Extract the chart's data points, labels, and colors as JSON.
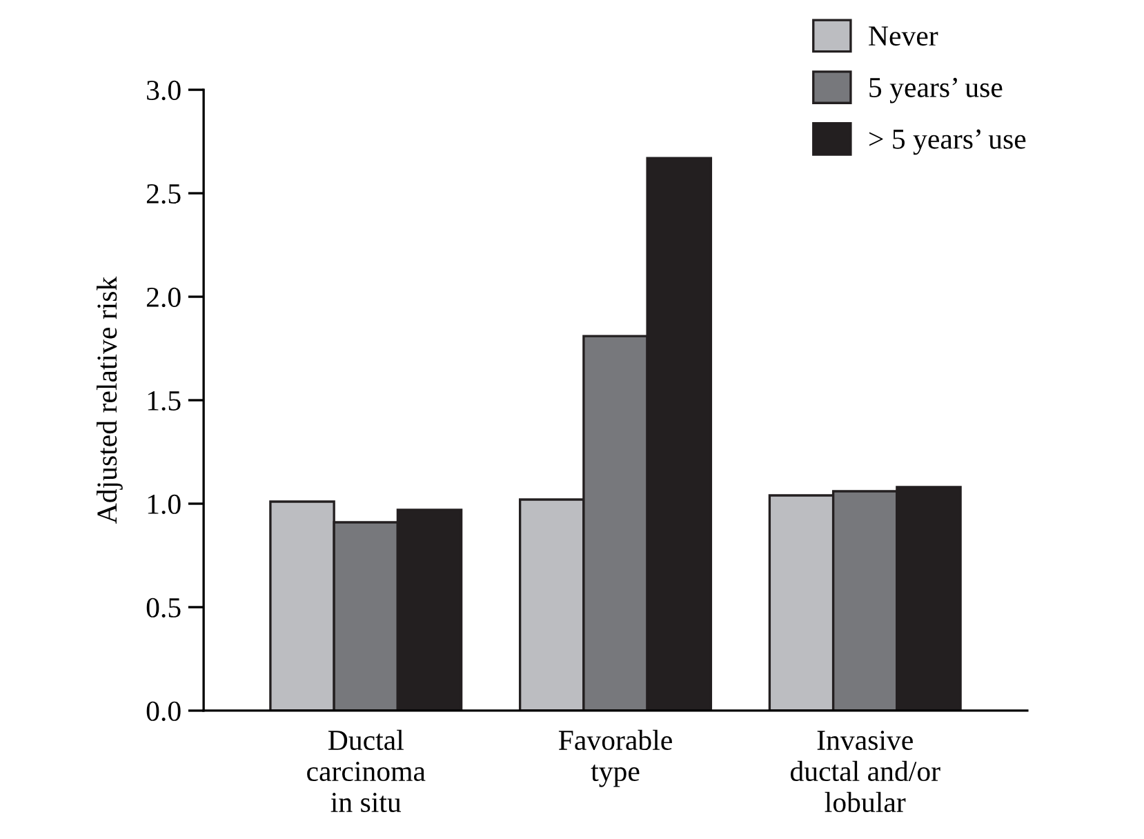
{
  "chart_data": {
    "type": "bar",
    "ylabel": "Adjusted relative risk",
    "categories": [
      "Ductal\ncarcinoma\nin situ",
      "Favorable\ntype",
      "Invasive\nductal and/or\nlobular"
    ],
    "series": [
      {
        "name": "Never",
        "color": "#bcbdc1",
        "values": [
          1.01,
          1.02,
          1.04
        ]
      },
      {
        "name": "5 years’ use",
        "color": "#77787c",
        "values": [
          0.91,
          1.81,
          1.06
        ]
      },
      {
        "name": "> 5 years’ use",
        "color": "#231f20",
        "values": [
          0.97,
          2.67,
          1.08
        ]
      }
    ],
    "ylim": [
      0,
      3.0
    ],
    "yticks": [
      {
        "value": 0,
        "label": "0.0"
      },
      0.5,
      {
        "value": 1,
        "label": "1.0"
      },
      1.5,
      {
        "value": 2,
        "label": "2.0"
      },
      2.5,
      {
        "value": 3,
        "label": "3.0"
      }
    ],
    "grid": false,
    "legend": "top right"
  }
}
